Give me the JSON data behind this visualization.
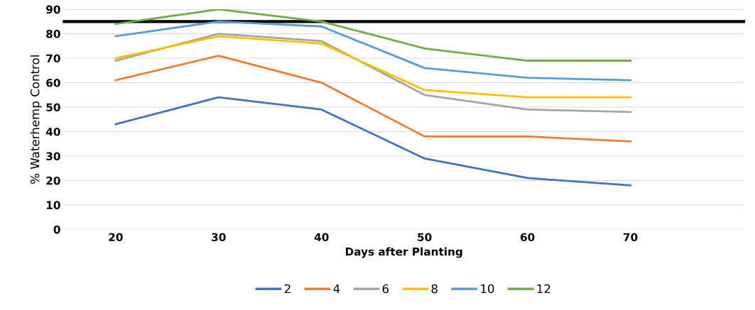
{
  "chart_data": {
    "type": "line",
    "xlabel": "Days after Planting",
    "ylabel": "% Waterhemp Control",
    "categories": [
      "20",
      "30",
      "40",
      "50",
      "60",
      "70"
    ],
    "series": [
      {
        "name": "2",
        "color": "#4472c4",
        "values": [
          43,
          54,
          49,
          29,
          21,
          18
        ]
      },
      {
        "name": "4",
        "color": "#ed7d31",
        "values": [
          61,
          71,
          60,
          38,
          38,
          36
        ]
      },
      {
        "name": "6",
        "color": "#a5a5a5",
        "values": [
          69,
          80,
          77,
          55,
          49,
          48
        ]
      },
      {
        "name": "8",
        "color": "#ffc000",
        "values": [
          70,
          79,
          76,
          57,
          54,
          54
        ]
      },
      {
        "name": "10",
        "color": "#5b9bd5",
        "values": [
          79,
          85,
          83,
          66,
          62,
          61
        ]
      },
      {
        "name": "12",
        "color": "#70ad47",
        "values": [
          84,
          90,
          85,
          74,
          69,
          69
        ]
      }
    ],
    "ylim": [
      0,
      90
    ],
    "yticks": [
      0,
      10,
      20,
      30,
      40,
      50,
      60,
      70,
      80,
      90
    ],
    "ref_lines": [
      {
        "axis": "y",
        "value": 85,
        "color": "#000000",
        "line_style": "solid"
      }
    ],
    "grid": "y",
    "legend": "bottom",
    "marker": "none",
    "line_style": "solid"
  }
}
